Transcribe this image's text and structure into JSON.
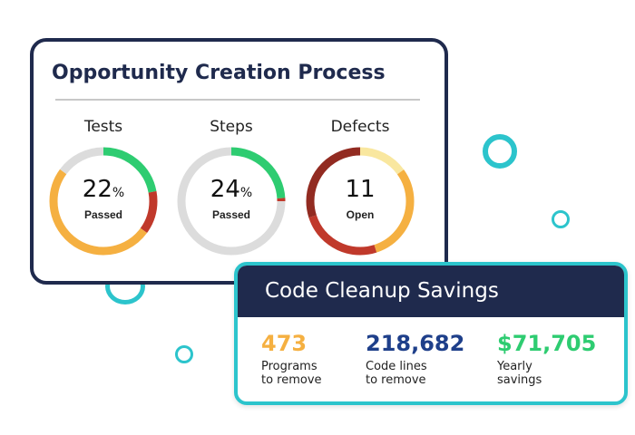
{
  "colors": {
    "navy": "#1f2a4d",
    "teal": "#2cc4cc",
    "green": "#2ecc71",
    "orange": "#f5b041",
    "red": "#c0392b",
    "darkred": "#922b21",
    "yellow": "#f9e79f",
    "gray": "#dcdcdc",
    "blue": "#1e3f8a"
  },
  "opportunity_card": {
    "title": "Opportunity Creation Process",
    "metrics": [
      {
        "label": "Tests",
        "value": "22",
        "unit": "%",
        "caption": "Passed",
        "icon": "donut-gauge-icon",
        "segments": [
          {
            "fraction": 0.22,
            "color": "green"
          },
          {
            "fraction": 0.13,
            "color": "red"
          },
          {
            "fraction": 0.5,
            "color": "orange"
          },
          {
            "fraction": 0.15,
            "color": "gray"
          }
        ]
      },
      {
        "label": "Steps",
        "value": "24",
        "unit": "%",
        "caption": "Passed",
        "icon": "donut-gauge-icon",
        "segments": [
          {
            "fraction": 0.24,
            "color": "green"
          },
          {
            "fraction": 0.01,
            "color": "red"
          },
          {
            "fraction": 0.75,
            "color": "gray"
          }
        ]
      },
      {
        "label": "Defects",
        "value": "11",
        "unit": "",
        "caption": "Open",
        "icon": "donut-gauge-icon",
        "segments": [
          {
            "fraction": 0.15,
            "color": "yellow"
          },
          {
            "fraction": 0.3,
            "color": "orange"
          },
          {
            "fraction": 0.25,
            "color": "red"
          },
          {
            "fraction": 0.3,
            "color": "darkred"
          }
        ]
      }
    ]
  },
  "cleanup_card": {
    "title": "Code Cleanup Savings",
    "stats": [
      {
        "value": "473",
        "label": "Programs\nto remove",
        "color": "orange"
      },
      {
        "value": "218,682",
        "label": "Code lines\nto remove",
        "color": "blue"
      },
      {
        "value": "$71,705",
        "label": "Yearly\nsavings",
        "color": "green"
      }
    ]
  }
}
